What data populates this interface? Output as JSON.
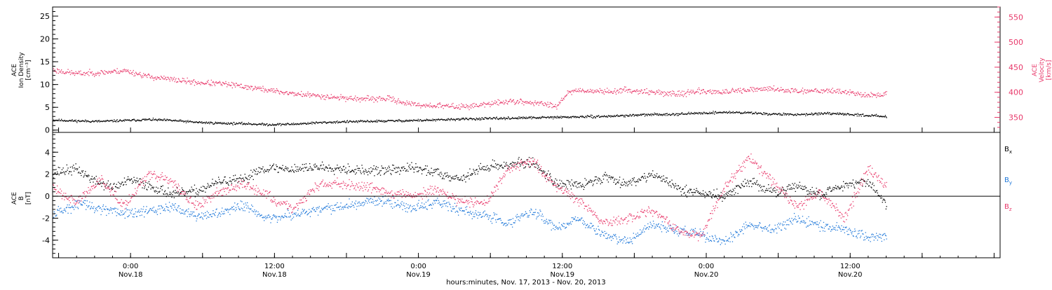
{
  "xlabel": "hours:minutes, Nov. 17, 2013 - Nov. 20, 2013",
  "x_ticks": [
    {
      "t": 6.5,
      "time": "0:00",
      "date": "Nov.18"
    },
    {
      "t": 18.5,
      "time": "12:00",
      "date": "Nov.18"
    },
    {
      "t": 30.5,
      "time": "0:00",
      "date": "Nov.19"
    },
    {
      "t": 42.5,
      "time": "12:00",
      "date": "Nov.19"
    },
    {
      "t": 54.5,
      "time": "0:00",
      "date": "Nov.20"
    },
    {
      "t": 66.5,
      "time": "12:00",
      "date": "Nov.20"
    }
  ],
  "chart_data": [
    {
      "type": "scatter",
      "panel": "top",
      "x_unit": "hours after Nov.17 17:30",
      "xlim": [
        0,
        79
      ],
      "left_axis": {
        "label_lines": [
          "ACE",
          "Ion Density",
          "[cm⁻³]"
        ],
        "ylim": [
          -0.5,
          27
        ],
        "ticks": [
          0,
          5,
          10,
          15,
          20,
          25
        ],
        "color": "#000000"
      },
      "right_axis": {
        "label_lines": [
          "ACE",
          "Velocity",
          "[km/s]"
        ],
        "ylim": [
          320,
          570
        ],
        "ticks": [
          350,
          400,
          450,
          500,
          550
        ],
        "color": "#e8386a"
      },
      "series": [
        {
          "axis": "left",
          "color": "#000000",
          "x": [
            0,
            2,
            4,
            6,
            8,
            10,
            12,
            14,
            16,
            18,
            20,
            22,
            24,
            26,
            28,
            30,
            32,
            34,
            36,
            38,
            40,
            42,
            44,
            46,
            48,
            50,
            52,
            54,
            56,
            58,
            60,
            62,
            64,
            66,
            68,
            69.5
          ],
          "y": [
            2.3,
            2.1,
            2.0,
            2.2,
            2.4,
            2.2,
            1.8,
            1.6,
            1.5,
            1.3,
            1.4,
            1.7,
            1.9,
            2.0,
            2.1,
            2.2,
            2.3,
            2.5,
            2.6,
            2.7,
            2.8,
            2.9,
            3.0,
            3.1,
            3.3,
            3.5,
            3.6,
            3.8,
            4.0,
            3.9,
            3.6,
            3.5,
            3.7,
            3.6,
            3.3,
            3.1
          ]
        },
        {
          "axis": "right",
          "color": "#e8386a",
          "x": [
            0,
            2,
            4,
            6,
            8,
            10,
            12,
            14,
            16,
            18,
            20,
            22,
            24,
            26,
            28,
            30,
            32,
            34,
            36,
            38,
            40,
            42,
            43,
            44,
            46,
            48,
            50,
            52,
            54,
            56,
            58,
            60,
            62,
            64,
            66,
            68,
            69.5
          ],
          "y": [
            445,
            438,
            440,
            444,
            432,
            426,
            420,
            418,
            412,
            405,
            398,
            394,
            390,
            387,
            388,
            376,
            374,
            372,
            376,
            383,
            380,
            374,
            402,
            405,
            402,
            405,
            401,
            397,
            403,
            401,
            405,
            408,
            403,
            405,
            402,
            394,
            397
          ]
        }
      ]
    },
    {
      "type": "scatter",
      "panel": "bottom",
      "x_unit": "hours after Nov.17 17:30",
      "xlim": [
        0,
        79
      ],
      "left_axis": {
        "label_lines": [
          "ACE",
          "B",
          "[nT]"
        ],
        "ylim": [
          -5.6,
          5.8
        ],
        "ticks": [
          -4,
          -2,
          0,
          2,
          4
        ]
      },
      "zero_line": true,
      "series": [
        {
          "name": "Bx",
          "color": "#000000",
          "x": [
            0,
            2,
            3.5,
            5,
            6.5,
            8,
            10,
            12,
            14,
            16,
            17,
            18,
            20,
            22,
            24,
            26,
            28,
            30,
            32,
            34,
            36,
            38,
            40,
            42,
            44,
            46,
            48,
            50,
            52,
            54,
            56,
            58,
            60,
            62,
            64,
            66,
            68,
            69.5
          ],
          "y": [
            2.2,
            2.5,
            1.4,
            0.8,
            1.5,
            1.0,
            0.2,
            0.5,
            1.4,
            1.5,
            2.4,
            2.6,
            2.5,
            2.7,
            2.6,
            2.3,
            2.4,
            2.6,
            2.2,
            1.6,
            2.7,
            2.9,
            3.1,
            1.2,
            1.0,
            1.8,
            1.2,
            2.1,
            0.8,
            0.3,
            0.0,
            1.4,
            0.4,
            0.9,
            0.2,
            1.1,
            1.4,
            -0.8
          ]
        },
        {
          "name": "By",
          "color": "#1f78d9",
          "x": [
            0,
            2,
            4,
            6,
            8,
            10,
            12,
            14,
            16,
            18,
            20,
            22,
            24,
            26,
            28,
            30,
            32,
            34,
            36,
            38,
            40,
            42,
            44,
            46,
            48,
            50,
            52,
            54,
            56,
            58,
            60,
            62,
            64,
            66,
            68,
            69.5
          ],
          "y": [
            -1.8,
            -0.6,
            -1.2,
            -1.6,
            -1.3,
            -0.9,
            -1.8,
            -1.5,
            -0.8,
            -2.0,
            -1.6,
            -1.2,
            -0.9,
            -0.5,
            -0.4,
            -1.1,
            -0.4,
            -1.3,
            -1.8,
            -2.4,
            -1.4,
            -2.8,
            -2.0,
            -3.6,
            -4.0,
            -2.5,
            -3.0,
            -3.4,
            -4.2,
            -2.6,
            -3.0,
            -2.0,
            -2.6,
            -3.0,
            -3.7,
            -3.5
          ]
        },
        {
          "name": "Bz",
          "color": "#e8386a",
          "x": [
            0,
            2,
            4,
            6,
            8,
            10,
            12,
            14,
            16,
            18,
            20,
            22,
            24,
            26,
            28,
            30,
            32,
            34,
            36,
            38,
            40,
            42,
            44,
            46,
            48,
            50,
            52,
            54,
            56,
            58,
            60,
            62,
            64,
            66,
            68,
            69.5
          ],
          "y": [
            0.8,
            -0.5,
            1.6,
            -0.8,
            2.2,
            1.3,
            -1.0,
            0.6,
            1.1,
            0.0,
            -1.2,
            1.0,
            1.2,
            1.0,
            0.4,
            0.1,
            0.6,
            -0.4,
            -0.7,
            2.6,
            3.2,
            0.9,
            -0.5,
            -2.5,
            -2.0,
            -1.2,
            -3.0,
            -3.6,
            0.8,
            3.6,
            1.4,
            -1.0,
            0.4,
            -2.0,
            2.5,
            1.0
          ]
        }
      ],
      "series_labels": [
        {
          "base": "B",
          "sub": "x",
          "color": "#000000"
        },
        {
          "base": "B",
          "sub": "y",
          "color": "#1f78d9"
        },
        {
          "base": "B",
          "sub": "z",
          "color": "#e8386a"
        }
      ]
    }
  ]
}
